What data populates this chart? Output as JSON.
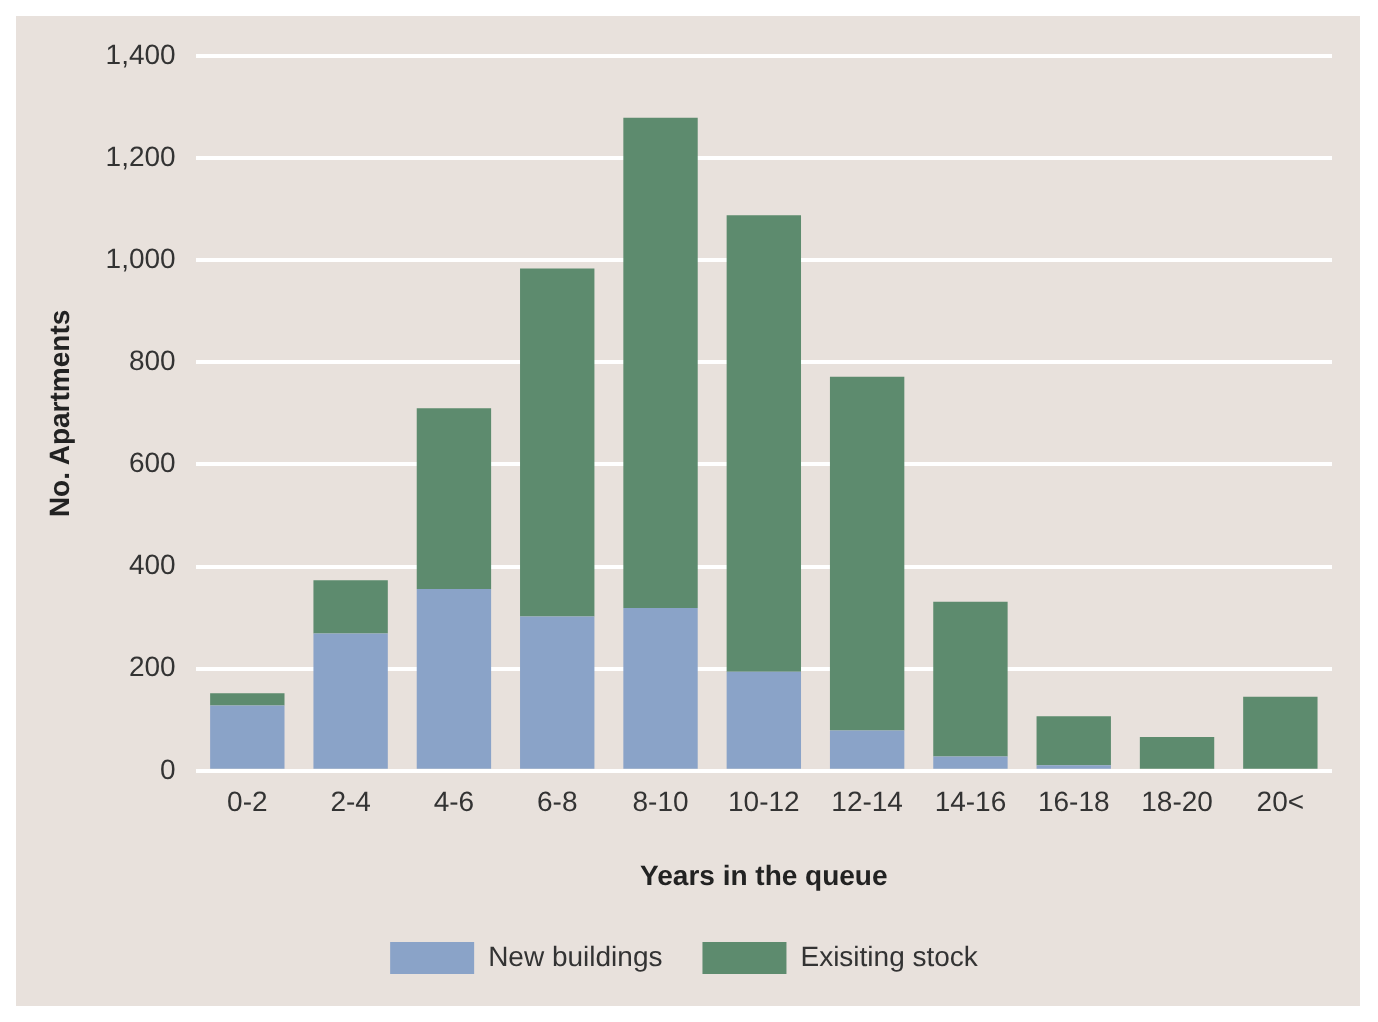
{
  "chart_data": {
    "type": "bar",
    "stacked": true,
    "xlabel": "Years in the queue",
    "ylabel": "No. Apartments",
    "categories": [
      "0-2",
      "2-4",
      "4-6",
      "6-8",
      "8-10",
      "10-12",
      "12-14",
      "14-16",
      "16-18",
      "18-20",
      "20<"
    ],
    "series": [
      {
        "name": "New buildings",
        "color": "#8aa3c8",
        "values": [
          128,
          269,
          356,
          302,
          319,
          194,
          79,
          28,
          11,
          null,
          null
        ]
      },
      {
        "name": "Exisiting stock",
        "color": "#5d8b6e",
        "values": [
          24,
          104,
          354,
          682,
          960,
          894,
          693,
          303,
          96,
          66,
          145
        ]
      }
    ],
    "ylim": [
      0,
      1400
    ],
    "yticks": [
      0,
      {
        "value": 200,
        "label": "200"
      },
      {
        "value": 400,
        "label": "400"
      },
      {
        "value": 600,
        "label": "600"
      },
      {
        "value": 800,
        "label": "800"
      },
      {
        "value": 1000,
        "label": "1,000"
      },
      {
        "value": 1200,
        "label": "1,200"
      },
      {
        "value": 1400,
        "label": "1,400"
      }
    ],
    "grid": "y",
    "legend": "bottom"
  }
}
